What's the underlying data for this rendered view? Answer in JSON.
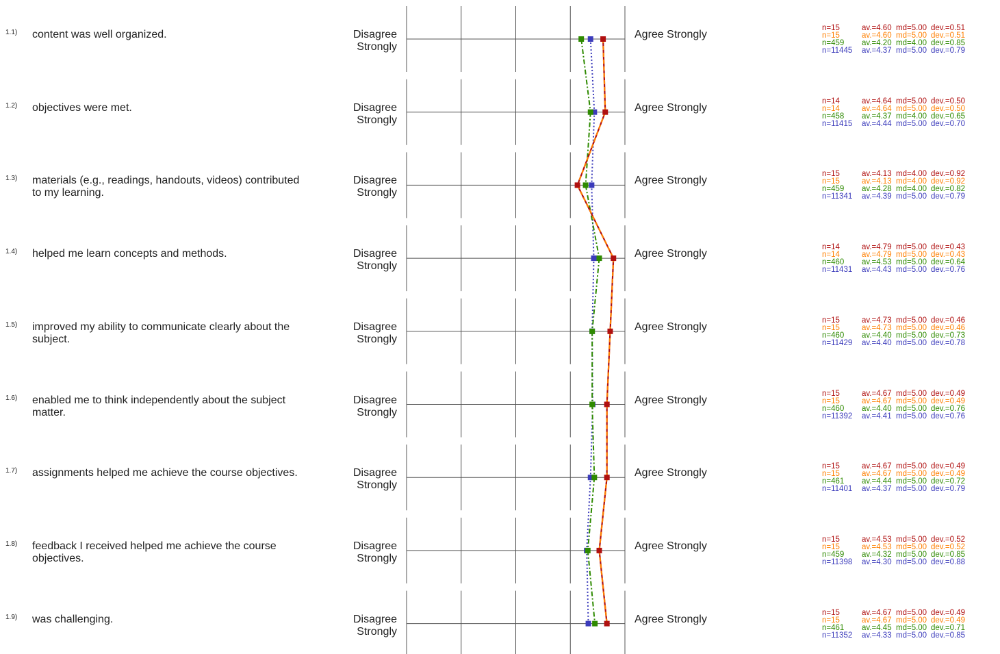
{
  "chart_data": {
    "type": "line",
    "scale": [
      1,
      5
    ],
    "series": [
      {
        "color": "#b01010",
        "style": "solid",
        "values": [
          4.6,
          4.64,
          4.13,
          4.79,
          4.73,
          4.67,
          4.67,
          4.53,
          4.67
        ]
      },
      {
        "color": "#ff7f00",
        "style": "dashed",
        "values": [
          4.6,
          4.64,
          4.13,
          4.79,
          4.73,
          4.67,
          4.67,
          4.53,
          4.67
        ]
      },
      {
        "color": "#2e8a00",
        "style": "dashdot",
        "values": [
          4.2,
          4.37,
          4.28,
          4.53,
          4.4,
          4.4,
          4.44,
          4.32,
          4.45
        ]
      },
      {
        "color": "#3b3bbb",
        "style": "dotted",
        "values": [
          4.37,
          4.44,
          4.39,
          4.43,
          4.4,
          4.41,
          4.37,
          4.3,
          4.33
        ]
      }
    ],
    "items": [
      {
        "num": "1.1)",
        "text": "content was well organized.",
        "left": "Disagree Strongly",
        "right": "Agree Strongly",
        "stats": [
          [
            "n=15",
            "av.=4.60",
            "md=5.00",
            "dev.=0.51"
          ],
          [
            "n=15",
            "av.=4.60",
            "md=5.00",
            "dev.=0.51"
          ],
          [
            "n=459",
            "av.=4.20",
            "md=4.00",
            "dev.=0.85"
          ],
          [
            "n=11445",
            "av.=4.37",
            "md=5.00",
            "dev.=0.79"
          ]
        ]
      },
      {
        "num": "1.2)",
        "text": "objectives were met.",
        "left": "Disagree Strongly",
        "right": "Agree Strongly",
        "stats": [
          [
            "n=14",
            "av.=4.64",
            "md=5.00",
            "dev.=0.50"
          ],
          [
            "n=14",
            "av.=4.64",
            "md=5.00",
            "dev.=0.50"
          ],
          [
            "n=458",
            "av.=4.37",
            "md=4.00",
            "dev.=0.65"
          ],
          [
            "n=11415",
            "av.=4.44",
            "md=5.00",
            "dev.=0.70"
          ]
        ]
      },
      {
        "num": "1.3)",
        "text": "materials (e.g., readings, handouts, videos) contributed to my learning.",
        "left": "Disagree Strongly",
        "right": "Agree Strongly",
        "stats": [
          [
            "n=15",
            "av.=4.13",
            "md=4.00",
            "dev.=0.92"
          ],
          [
            "n=15",
            "av.=4.13",
            "md=4.00",
            "dev.=0.92"
          ],
          [
            "n=459",
            "av.=4.28",
            "md=4.00",
            "dev.=0.82"
          ],
          [
            "n=11341",
            "av.=4.39",
            "md=5.00",
            "dev.=0.79"
          ]
        ]
      },
      {
        "num": "1.4)",
        "text": "helped me learn concepts and methods.",
        "left": "Disagree Strongly",
        "right": "Agree Strongly",
        "stats": [
          [
            "n=14",
            "av.=4.79",
            "md=5.00",
            "dev.=0.43"
          ],
          [
            "n=14",
            "av.=4.79",
            "md=5.00",
            "dev.=0.43"
          ],
          [
            "n=460",
            "av.=4.53",
            "md=5.00",
            "dev.=0.64"
          ],
          [
            "n=11431",
            "av.=4.43",
            "md=5.00",
            "dev.=0.76"
          ]
        ]
      },
      {
        "num": "1.5)",
        "text": "improved my ability to communicate clearly about the subject.",
        "left": "Disagree Strongly",
        "right": "Agree Strongly",
        "stats": [
          [
            "n=15",
            "av.=4.73",
            "md=5.00",
            "dev.=0.46"
          ],
          [
            "n=15",
            "av.=4.73",
            "md=5.00",
            "dev.=0.46"
          ],
          [
            "n=460",
            "av.=4.40",
            "md=5.00",
            "dev.=0.73"
          ],
          [
            "n=11429",
            "av.=4.40",
            "md=5.00",
            "dev.=0.78"
          ]
        ]
      },
      {
        "num": "1.6)",
        "text": "enabled me to think independently about the subject matter.",
        "left": "Disagree Strongly",
        "right": "Agree Strongly",
        "stats": [
          [
            "n=15",
            "av.=4.67",
            "md=5.00",
            "dev.=0.49"
          ],
          [
            "n=15",
            "av.=4.67",
            "md=5.00",
            "dev.=0.49"
          ],
          [
            "n=460",
            "av.=4.40",
            "md=5.00",
            "dev.=0.76"
          ],
          [
            "n=11392",
            "av.=4.41",
            "md=5.00",
            "dev.=0.76"
          ]
        ]
      },
      {
        "num": "1.7)",
        "text": "assignments helped me achieve the course objectives.",
        "left": "Disagree Strongly",
        "right": "Agree Strongly",
        "stats": [
          [
            "n=15",
            "av.=4.67",
            "md=5.00",
            "dev.=0.49"
          ],
          [
            "n=15",
            "av.=4.67",
            "md=5.00",
            "dev.=0.49"
          ],
          [
            "n=461",
            "av.=4.44",
            "md=5.00",
            "dev.=0.72"
          ],
          [
            "n=11401",
            "av.=4.37",
            "md=5.00",
            "dev.=0.79"
          ]
        ]
      },
      {
        "num": "1.8)",
        "text": "feedback I received helped me achieve the course objectives.",
        "left": "Disagree Strongly",
        "right": "Agree Strongly",
        "stats": [
          [
            "n=15",
            "av.=4.53",
            "md=5.00",
            "dev.=0.52"
          ],
          [
            "n=15",
            "av.=4.53",
            "md=5.00",
            "dev.=0.52"
          ],
          [
            "n=459",
            "av.=4.32",
            "md=5.00",
            "dev.=0.85"
          ],
          [
            "n=11398",
            "av.=4.30",
            "md=5.00",
            "dev.=0.88"
          ]
        ]
      },
      {
        "num": "1.9)",
        "text": "was challenging.",
        "left": "Disagree Strongly",
        "right": "Agree Strongly",
        "stats": [
          [
            "n=15",
            "av.=4.67",
            "md=5.00",
            "dev.=0.49"
          ],
          [
            "n=15",
            "av.=4.67",
            "md=5.00",
            "dev.=0.49"
          ],
          [
            "n=461",
            "av.=4.45",
            "md=5.00",
            "dev.=0.71"
          ],
          [
            "n=11352",
            "av.=4.33",
            "md=5.00",
            "dev.=0.85"
          ]
        ]
      }
    ]
  }
}
